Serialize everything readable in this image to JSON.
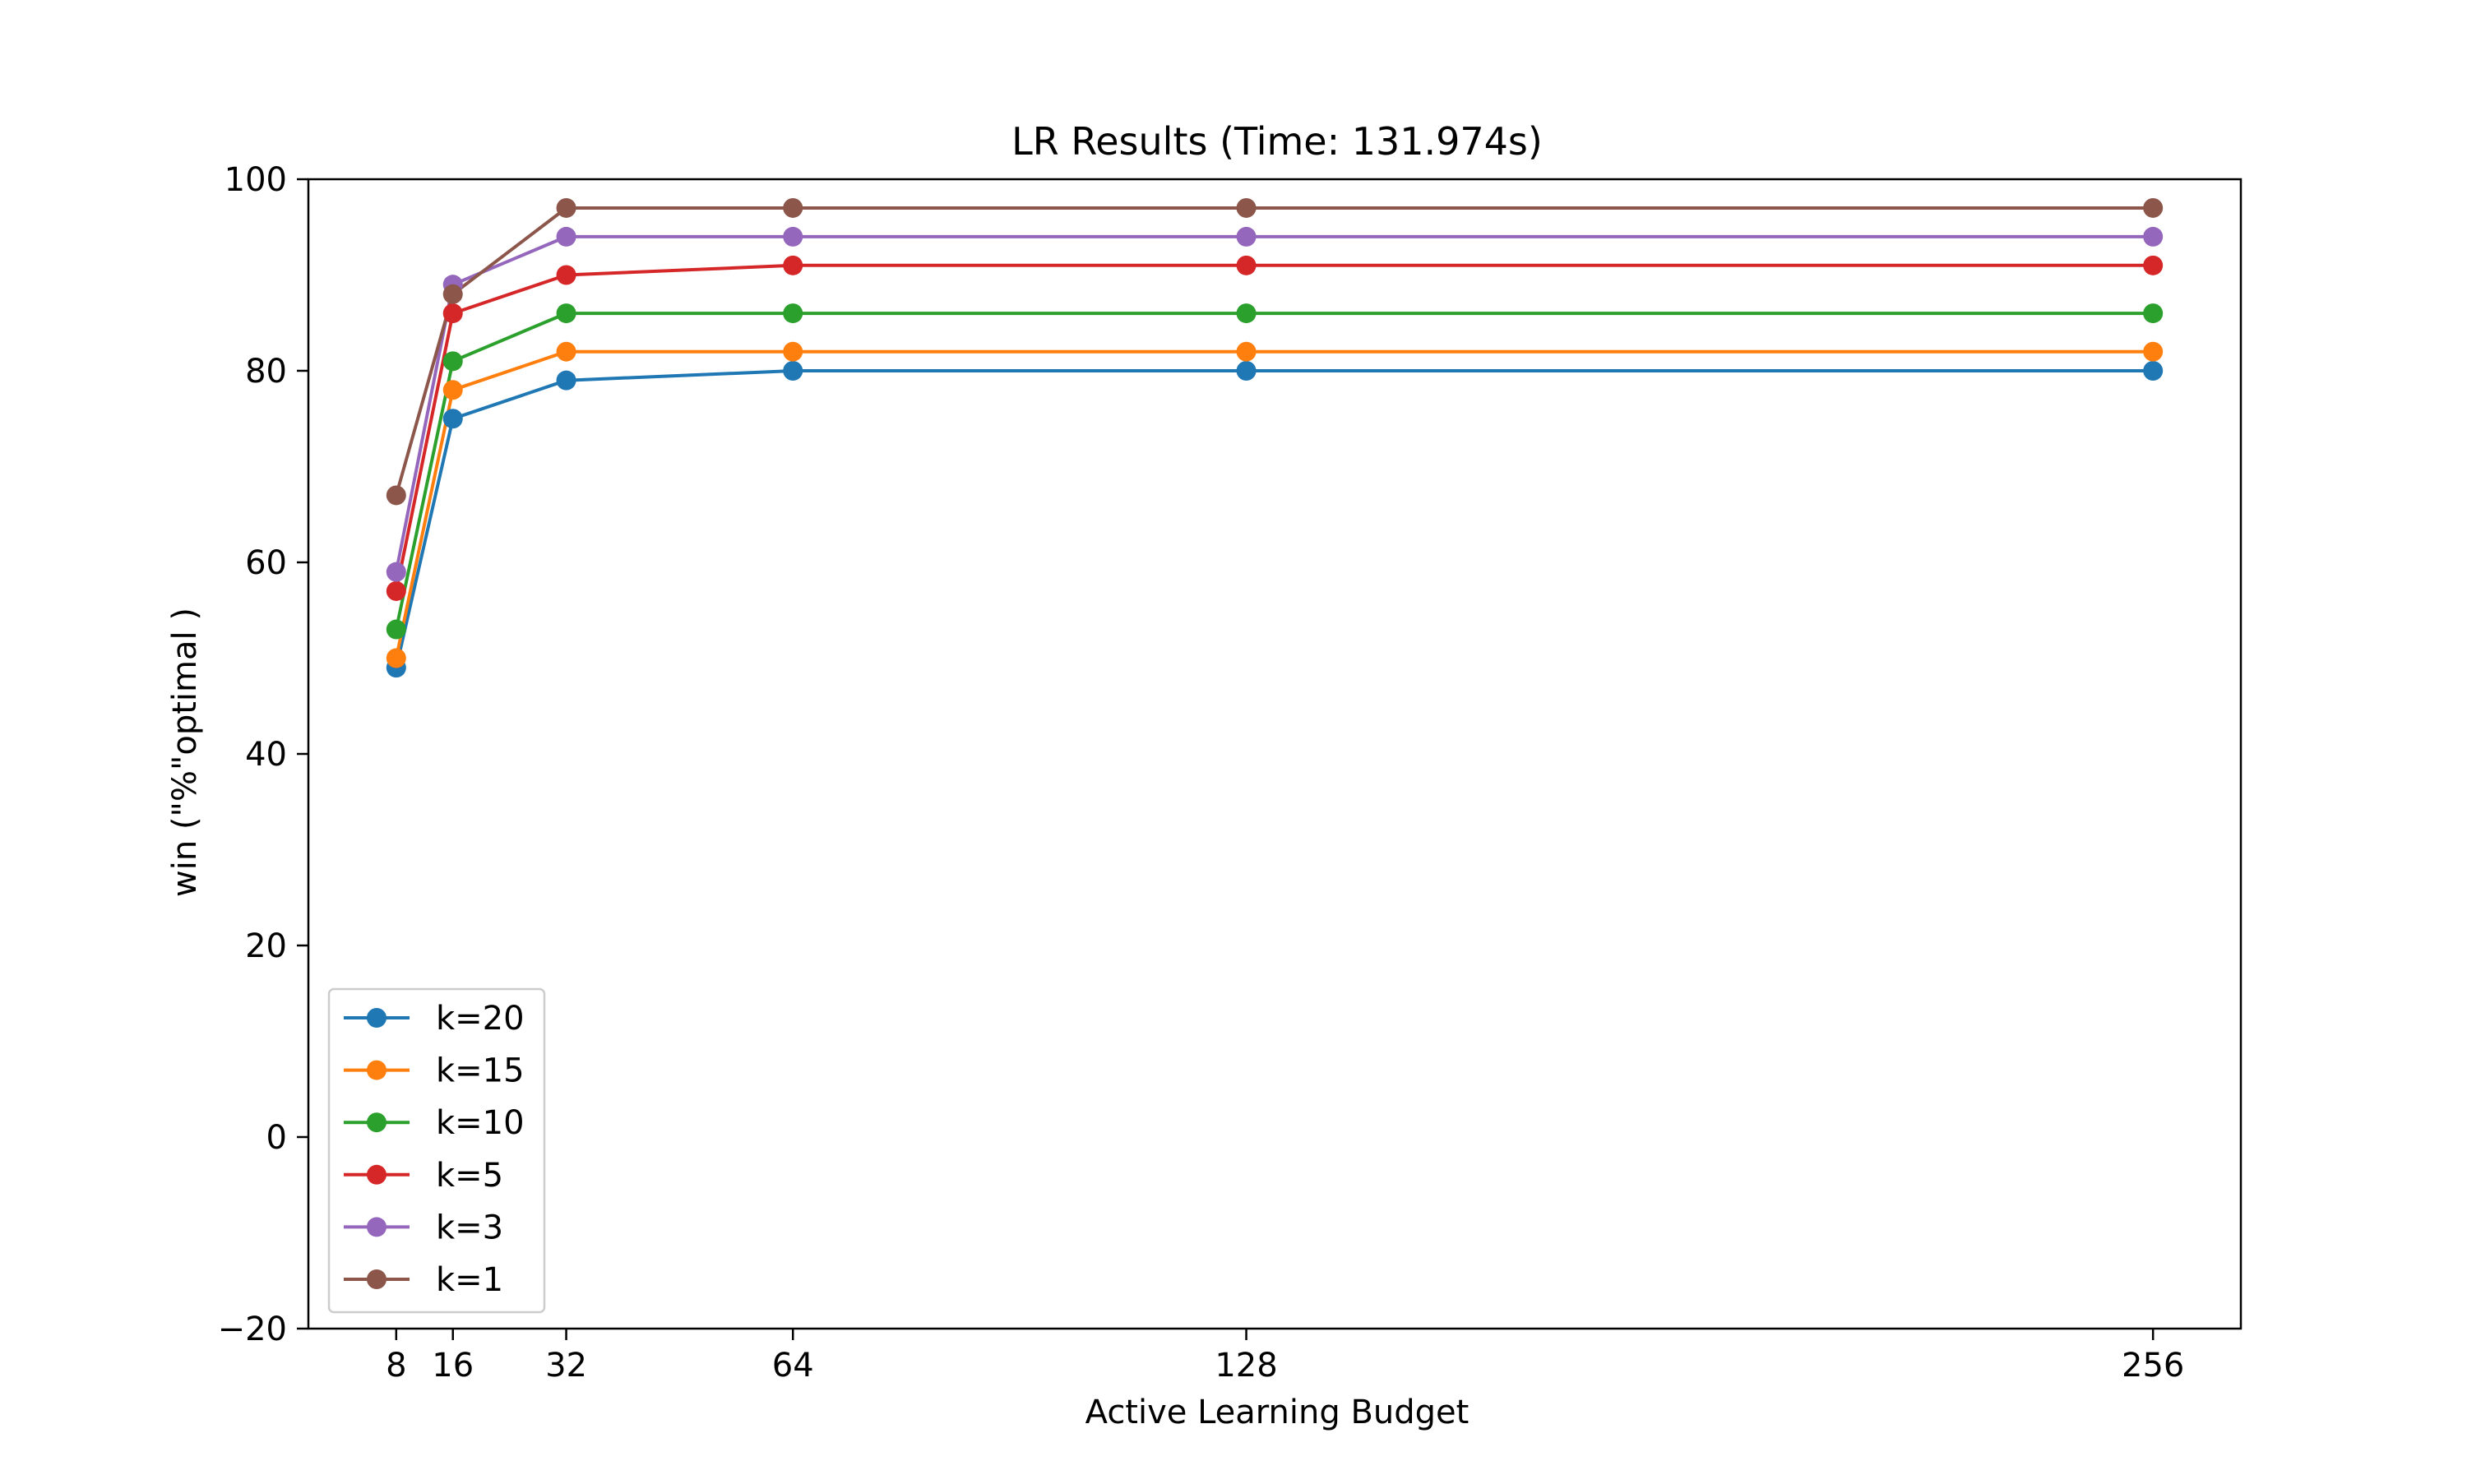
{
  "chart_data": {
    "type": "line",
    "title": "LR Results (Time: 131.974s)",
    "xlabel": "Active Learning Budget",
    "ylabel": "win (\"%\"optimal )",
    "x": [
      8,
      16,
      32,
      64,
      128,
      256
    ],
    "xlim": [
      -4.4,
      268.4
    ],
    "ylim": [
      -20,
      100
    ],
    "xticks": [
      8,
      16,
      32,
      64,
      128,
      256
    ],
    "yticks": [
      -20,
      0,
      20,
      40,
      60,
      80,
      100
    ],
    "ytick_labels": [
      "−20",
      "0",
      "20",
      "40",
      "60",
      "80",
      "100"
    ],
    "grid": false,
    "legend_position": "lower-left",
    "series": [
      {
        "name": "k=20",
        "color": "#1f77b4",
        "values": [
          49,
          75,
          79,
          80,
          80,
          80
        ]
      },
      {
        "name": "k=15",
        "color": "#ff7f0e",
        "values": [
          50,
          78,
          82,
          82,
          82,
          82
        ]
      },
      {
        "name": "k=10",
        "color": "#2ca02c",
        "values": [
          53,
          81,
          86,
          86,
          86,
          86
        ]
      },
      {
        "name": "k=5",
        "color": "#d62728",
        "values": [
          57,
          86,
          90,
          91,
          91,
          91
        ]
      },
      {
        "name": "k=3",
        "color": "#9467bd",
        "values": [
          59,
          89,
          94,
          94,
          94,
          94
        ]
      },
      {
        "name": "k=1",
        "color": "#8c564b",
        "values": [
          67,
          88,
          97,
          97,
          97,
          97
        ]
      }
    ]
  }
}
